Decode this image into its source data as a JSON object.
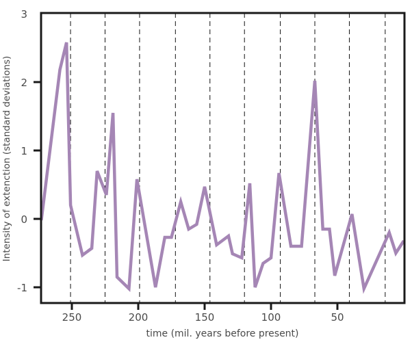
{
  "chart_data": {
    "type": "line",
    "title": "",
    "xlabel": "time (mil. years before present)",
    "ylabel": "Intensity of extenction (standard deviations)",
    "xlim": [
      273,
      0
    ],
    "ylim": [
      -1.25,
      3
    ],
    "x_reversed": true,
    "xticks": [
      250,
      200,
      150,
      100,
      50
    ],
    "yticks": [
      -1,
      0,
      1,
      2,
      3
    ],
    "grid": false,
    "dashed_reference_lines_x": [
      251,
      225,
      199,
      172,
      146,
      120,
      93,
      67,
      41,
      14
    ],
    "line_color": "#a586b5",
    "series": [
      {
        "x": [
          273,
          259,
          254,
          251,
          242,
          235,
          231,
          224,
          219,
          216,
          207,
          201,
          187,
          180,
          175,
          168,
          162,
          156,
          150,
          141,
          132,
          129,
          122,
          116,
          112,
          106,
          100,
          94,
          85,
          77,
          67,
          61,
          56,
          52,
          39,
          30,
          11,
          6,
          0
        ],
        "values": [
          -0.02,
          2.18,
          2.58,
          0.2,
          -0.53,
          -0.43,
          0.7,
          0.35,
          1.55,
          -0.85,
          -1.02,
          0.58,
          -1.0,
          -0.27,
          -0.27,
          0.25,
          -0.15,
          -0.08,
          0.47,
          -0.38,
          -0.25,
          -0.51,
          -0.57,
          0.52,
          -1.0,
          -0.65,
          -0.57,
          0.67,
          -0.4,
          -0.4,
          2.02,
          -0.15,
          -0.15,
          -0.83,
          0.07,
          -1.02,
          -0.2,
          -0.5,
          -0.32
        ]
      }
    ]
  }
}
